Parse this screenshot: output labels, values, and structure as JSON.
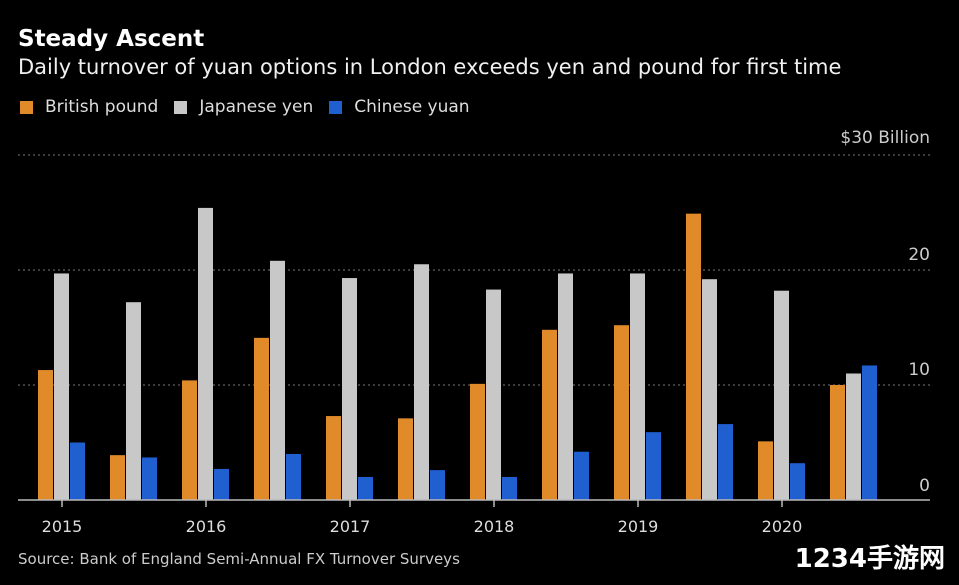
{
  "chart_data": {
    "type": "bar",
    "title": "Steady Ascent",
    "subtitle": "Daily turnover of yuan options in London exceeds yen and pound for first time",
    "source": "Source: Bank of England Semi-Annual FX Turnover Surveys",
    "xlabel": "",
    "ylabel": "",
    "unit_label": "$30 Billion",
    "ylim": [
      0,
      30
    ],
    "yticks": [
      {
        "value": 0,
        "label": "0"
      },
      {
        "value": 10,
        "label": "10"
      },
      {
        "value": 20,
        "label": "20"
      },
      {
        "value": 30,
        "label": "$30 Billion"
      }
    ],
    "x_labels": [
      "2015",
      "2016",
      "2017",
      "2018",
      "2019",
      "2020"
    ],
    "periods": [
      "2015-H1",
      "2015-H2",
      "2016-H1",
      "2016-H2",
      "2017-H1",
      "2017-H2",
      "2018-H1",
      "2018-H2",
      "2019-H1",
      "2019-H2",
      "2020-H1",
      "2020-H2"
    ],
    "series": [
      {
        "name": "British pound",
        "color": "#e08a2a",
        "values": [
          11.3,
          3.9,
          10.4,
          14.1,
          7.3,
          7.1,
          10.1,
          14.8,
          15.2,
          24.9,
          5.1,
          10.0
        ]
      },
      {
        "name": "Japanese yen",
        "color": "#c8c8c8",
        "values": [
          19.7,
          17.2,
          25.4,
          20.8,
          19.3,
          20.5,
          18.3,
          19.7,
          19.7,
          19.2,
          18.2,
          11.0
        ]
      },
      {
        "name": "Chinese yuan",
        "color": "#1f5fd0",
        "values": [
          5.0,
          3.7,
          2.7,
          4.0,
          2.0,
          2.6,
          2.0,
          4.2,
          5.9,
          6.6,
          3.2,
          11.7
        ]
      }
    ],
    "grid": true,
    "legend_position": "top-left"
  },
  "watermark": "1234手游网"
}
